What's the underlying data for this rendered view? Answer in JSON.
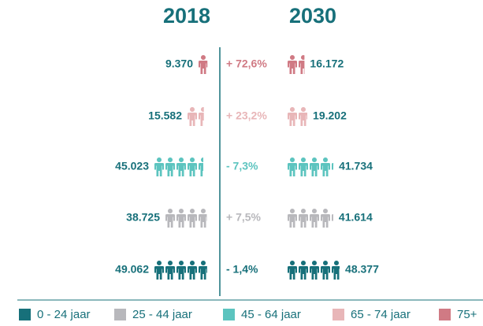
{
  "header": {
    "year_left": "2018",
    "year_right": "2030"
  },
  "rows": [
    {
      "value_2018": "9.370",
      "change": "+ 72,6%",
      "value_2030": "16.172",
      "color": "#d07a84"
    },
    {
      "value_2018": "15.582",
      "change": "+ 23,2%",
      "value_2030": "19.202",
      "color": "#e8b6b8"
    },
    {
      "value_2018": "45.023",
      "change": "- 7,3%",
      "value_2030": "41.734",
      "color": "#5cc4bf"
    },
    {
      "value_2018": "38.725",
      "change": "+ 7,5%",
      "value_2030": "41.614",
      "color": "#b8b8bc"
    },
    {
      "value_2018": "49.062",
      "change": "- 1,4%",
      "value_2030": "48.377",
      "color": "#17707a"
    }
  ],
  "legend": [
    {
      "label": "0 - 24 jaar",
      "color": "#17707a"
    },
    {
      "label": "25 - 44 jaar",
      "color": "#b8b8bc"
    },
    {
      "label": "45 - 64 jaar",
      "color": "#5cc4bf"
    },
    {
      "label": "65 - 74 jaar",
      "color": "#e8b6b8"
    },
    {
      "label": "75+",
      "color": "#d07a84"
    }
  ]
}
